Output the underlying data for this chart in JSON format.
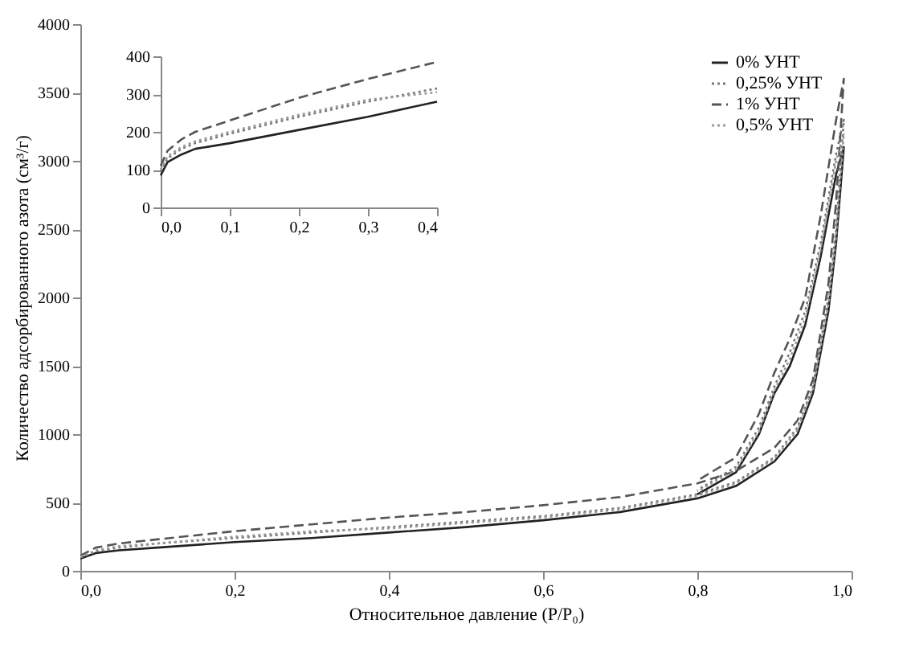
{
  "chart_data": [
    {
      "type": "line",
      "xlabel": "Относительное давление (P/P₀)",
      "ylabel": "Количество адсорбированного азота (см³/г)",
      "xlim": [
        0,
        1
      ],
      "ylim": [
        0,
        4000
      ],
      "xticks": [
        {
          "value": 0,
          "label": "0,0"
        },
        {
          "value": 0.2,
          "label": "0,2"
        },
        {
          "value": 0.4,
          "label": "0,4"
        },
        {
          "value": 0.6,
          "label": "0,6"
        },
        {
          "value": 0.8,
          "label": "0,8"
        },
        {
          "value": 1,
          "label": "1,0"
        }
      ],
      "yticks": [
        0,
        500,
        1000,
        1500,
        2000,
        2500,
        3000,
        3500,
        4000
      ],
      "grid": false,
      "legend": "top right",
      "series": [
        {
          "name": "0% УНТ",
          "color": "#222222",
          "line_style": "solid",
          "x": [
            0,
            0.02,
            0.05,
            0.1,
            0.2,
            0.3,
            0.4,
            0.5,
            0.6,
            0.7,
            0.8,
            0.85,
            0.9,
            0.93,
            0.95,
            0.97,
            0.98,
            0.99,
            0.98,
            0.96,
            0.94,
            0.92,
            0.9,
            0.88,
            0.85,
            0.8
          ],
          "values": [
            90,
            130,
            150,
            170,
            210,
            240,
            280,
            320,
            370,
            430,
            530,
            620,
            800,
            1000,
            1300,
            1900,
            2400,
            3100,
            2900,
            2300,
            1800,
            1500,
            1300,
            1000,
            720,
            560
          ]
        },
        {
          "name": "0,25% УНТ",
          "color": "#777777",
          "line_style": "dotted",
          "x": [
            0,
            0.02,
            0.05,
            0.1,
            0.2,
            0.3,
            0.4,
            0.5,
            0.6,
            0.7,
            0.8,
            0.85,
            0.9,
            0.93,
            0.95,
            0.97,
            0.98,
            0.99,
            0.98,
            0.96,
            0.94,
            0.92,
            0.9,
            0.88,
            0.85,
            0.8
          ],
          "values": [
            100,
            140,
            170,
            200,
            240,
            280,
            320,
            360,
            400,
            460,
            560,
            650,
            830,
            1050,
            1350,
            2000,
            2500,
            3300,
            3050,
            2400,
            1900,
            1600,
            1350,
            1050,
            760,
            590
          ]
        },
        {
          "name": "1% УНТ",
          "color": "#555555",
          "line_style": "dashed",
          "x": [
            0,
            0.02,
            0.05,
            0.1,
            0.2,
            0.3,
            0.4,
            0.5,
            0.6,
            0.7,
            0.8,
            0.85,
            0.9,
            0.93,
            0.95,
            0.97,
            0.98,
            0.99,
            0.98,
            0.96,
            0.94,
            0.92,
            0.9,
            0.88,
            0.85,
            0.8
          ],
          "values": [
            110,
            170,
            200,
            230,
            290,
            340,
            390,
            430,
            480,
            540,
            640,
            730,
            900,
            1100,
            1400,
            2100,
            2700,
            3600,
            3300,
            2600,
            2000,
            1700,
            1450,
            1150,
            830,
            660
          ]
        },
        {
          "name": "0,5% УНТ",
          "color": "#999999",
          "line_style": "dotted",
          "x": [
            0,
            0.02,
            0.05,
            0.1,
            0.2,
            0.3,
            0.4,
            0.5,
            0.6,
            0.7,
            0.8,
            0.85,
            0.9,
            0.93,
            0.95,
            0.97,
            0.98,
            0.99,
            0.98,
            0.96,
            0.94,
            0.92,
            0.9,
            0.88,
            0.85,
            0.8
          ],
          "values": [
            100,
            150,
            180,
            200,
            250,
            290,
            310,
            350,
            390,
            450,
            550,
            640,
            820,
            1030,
            1330,
            1950,
            2450,
            3200,
            3000,
            2350,
            1850,
            1550,
            1320,
            1020,
            740,
            580
          ]
        }
      ]
    },
    {
      "type": "line",
      "xlim": [
        0,
        0.4
      ],
      "ylim": [
        0,
        400
      ],
      "xticks": [
        {
          "value": 0,
          "label": "0,0"
        },
        {
          "value": 0.1,
          "label": "0,1"
        },
        {
          "value": 0.2,
          "label": "0,2"
        },
        {
          "value": 0.3,
          "label": "0,3"
        },
        {
          "value": 0.4,
          "label": "0,4"
        }
      ],
      "yticks": [
        0,
        100,
        200,
        300,
        400
      ],
      "grid": false,
      "legend": false,
      "series": [
        {
          "color": "#222222",
          "line_style": "solid",
          "x": [
            0,
            0.01,
            0.03,
            0.05,
            0.1,
            0.2,
            0.3,
            0.4
          ],
          "values": [
            85,
            120,
            140,
            155,
            170,
            205,
            240,
            280
          ]
        },
        {
          "color": "#777777",
          "line_style": "dotted",
          "x": [
            0,
            0.01,
            0.03,
            0.05,
            0.1,
            0.2,
            0.3,
            0.4
          ],
          "values": [
            95,
            130,
            155,
            170,
            195,
            240,
            280,
            315
          ]
        },
        {
          "color": "#555555",
          "line_style": "dashed",
          "x": [
            0,
            0.01,
            0.03,
            0.05,
            0.1,
            0.2,
            0.3,
            0.4
          ],
          "values": [
            110,
            150,
            180,
            200,
            230,
            290,
            340,
            385
          ]
        },
        {
          "color": "#999999",
          "line_style": "dotted",
          "x": [
            0,
            0.01,
            0.03,
            0.05,
            0.1,
            0.2,
            0.3,
            0.4
          ],
          "values": [
            100,
            135,
            160,
            175,
            200,
            245,
            285,
            305
          ]
        }
      ]
    }
  ]
}
